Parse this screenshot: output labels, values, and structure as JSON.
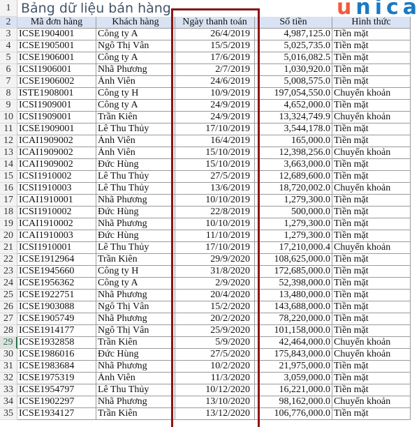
{
  "title": "Bảng dữ liệu bán hàng",
  "logo": {
    "u": "u",
    "rest": "nica"
  },
  "colors": {
    "header_fill": "#dae3f3",
    "highlight_box": "#8b1414",
    "logo_orange": "#f05a3a",
    "logo_blue": "#1a7ac4"
  },
  "active_row": "29",
  "headers": [
    "Mã đơn hàng",
    "Khách hàng",
    "Ngày thanh toán",
    "Số tiền",
    "Hình thức"
  ],
  "rows": [
    [
      "3",
      "ICSE1904001",
      "Công ty A",
      "26/4/2019",
      "4,987,125.0",
      "Tiền mặt"
    ],
    [
      "4",
      "ICSE1905001",
      "Ngô Thị Vân",
      "15/5/2019",
      "5,025,735.0",
      "Tiền mặt"
    ],
    [
      "5",
      "ICSE1906001",
      "Công ty A",
      "17/6/2019",
      "5,016,082.5",
      "Tiền mặt"
    ],
    [
      "6",
      "ICSI1906001",
      "Nhã Phương",
      "2/7/2019",
      "1,030,920.0",
      "Tiền mặt"
    ],
    [
      "7",
      "ICSE1906002",
      "Ánh Viên",
      "24/6/2019",
      "5,008,575.0",
      "Tiền mặt"
    ],
    [
      "8",
      "ISTE1908001",
      "Công ty H",
      "10/9/2019",
      "197,054,550.0",
      "Chuyển khoản"
    ],
    [
      "9",
      "ICSI1909001",
      "Công ty A",
      "24/9/2019",
      "4,652,000.0",
      "Tiền mặt"
    ],
    [
      "10",
      "ICSI1909001",
      "Trần Kiên",
      "24/9/2019",
      "13,324,749.9",
      "Chuyển khoản"
    ],
    [
      "11",
      "ICSE1909001",
      "Lê Thu Thủy",
      "17/10/2019",
      "3,544,178.0",
      "Tiền mặt"
    ],
    [
      "12",
      "ICAI1909002",
      "Ánh Viên",
      "16/4/2019",
      "165,000.0",
      "Tiền mặt"
    ],
    [
      "13",
      "ICAI1909002",
      "Ánh Viên",
      "15/10/2019",
      "12,398,256.0",
      "Chuyển khoản"
    ],
    [
      "14",
      "ICAI1909002",
      "Đức Hùng",
      "15/10/2019",
      "3,663,000.0",
      "Tiền mặt"
    ],
    [
      "15",
      "ICSI1910002",
      "Lê Thu Thủy",
      "27/5/2019",
      "12,689,600.0",
      "Tiền mặt"
    ],
    [
      "16",
      "ICSI1910003",
      "Lê Thu Thủy",
      "13/6/2019",
      "18,720,002.0",
      "Chuyển khoản"
    ],
    [
      "17",
      "ICAI1910001",
      "Nhã Phương",
      "10/10/2019",
      "1,279,300.0",
      "Tiền mặt"
    ],
    [
      "18",
      "ICSI1910002",
      "Đức Hùng",
      "22/8/2019",
      "500,000.0",
      "Tiền mặt"
    ],
    [
      "19",
      "ICAI1910002",
      "Nhã Phương",
      "10/10/2019",
      "1,279,300.0",
      "Tiền mặt"
    ],
    [
      "20",
      "ICAI1910003",
      "Đức Hùng",
      "11/10/2019",
      "1,279,300.0",
      "Tiền mặt"
    ],
    [
      "21",
      "ICSI1910001",
      "Lê Thu Thủy",
      "17/10/2019",
      "17,210,000.4",
      "Chuyển khoản"
    ],
    [
      "22",
      "ICSE1912964",
      "Trần Kiên",
      "29/9/2020",
      "108,625,000.0",
      "Tiền mặt"
    ],
    [
      "23",
      "ICSE1945660",
      "Công ty H",
      "31/8/2020",
      "172,685,000.0",
      "Tiền mặt"
    ],
    [
      "24",
      "ICSE1956362",
      "Công ty A",
      "2/9/2020",
      "52,398,000.0",
      "Tiền mặt"
    ],
    [
      "25",
      "ICSE1922751",
      "Nhã Phương",
      "20/4/2020",
      "13,480,000.0",
      "Tiền mặt"
    ],
    [
      "26",
      "ICSE1903088",
      "Ngô Thị Vân",
      "15/2/2020",
      "143,688,000.0",
      "Tiền mặt"
    ],
    [
      "27",
      "ICSE1905749",
      "Nhã Phương",
      "20/2/2020",
      "78,220,000.0",
      "Tiền mặt"
    ],
    [
      "28",
      "ICSE1914177",
      "Ngô Thị Vân",
      "25/9/2020",
      "101,158,000.0",
      "Tiền mặt"
    ],
    [
      "29",
      "ICSE1932858",
      "Trần Kiên",
      "5/9/2020",
      "42,464,000.0",
      "Chuyển khoản"
    ],
    [
      "30",
      "ICSE1986016",
      "Đức Hùng",
      "27/5/2020",
      "175,843,000.0",
      "Chuyển khoản"
    ],
    [
      "31",
      "ICSE1983684",
      "Nhã Phương",
      "10/2/2020",
      "21,975,000.0",
      "Tiền mặt"
    ],
    [
      "32",
      "ICSE1975319",
      "Ánh Viên",
      "11/3/2020",
      "3,059,000.0",
      "Tiền mặt"
    ],
    [
      "33",
      "ICSE1954797",
      "Lê Thu Thủy",
      "10/12/2020",
      "16,221,000.0",
      "Tiền mặt"
    ],
    [
      "34",
      "ICSE1902297",
      "Nhã Phương",
      "13/10/2020",
      "98,162,000.0",
      "Chuyển khoản"
    ],
    [
      "35",
      "ICSE1934127",
      "Trần Kiên",
      "13/12/2020",
      "106,776,000.0",
      "Tiền mặt"
    ]
  ]
}
